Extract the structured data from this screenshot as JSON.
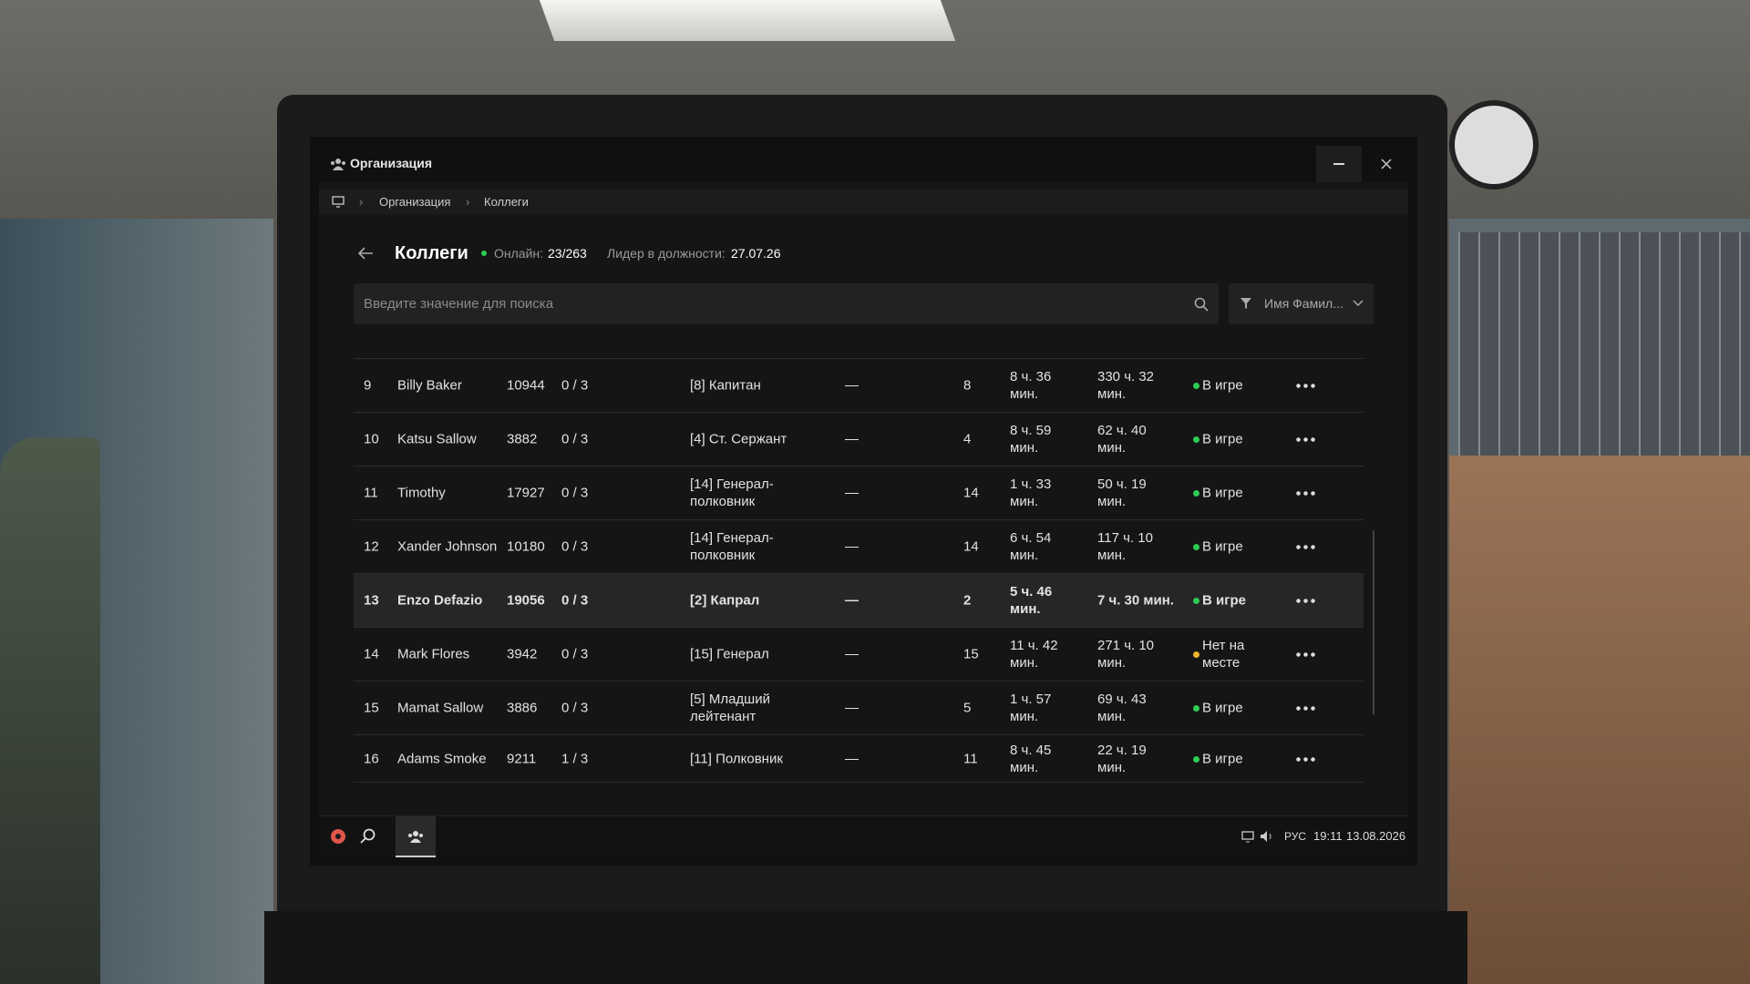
{
  "window": {
    "title": "Организация"
  },
  "breadcrumb": [
    "Организация",
    "Коллеги"
  ],
  "header": {
    "title": "Коллеги",
    "online_label": "Онлайн:",
    "online_value": "23/263",
    "leader_label": "Лидер в должности:",
    "leader_value": "27.07.26"
  },
  "search": {
    "placeholder": "Введите значение для поиска",
    "filter": "Имя Фамил..."
  },
  "rows": [
    {
      "num": "9",
      "name": "Billy Baker",
      "id": "10944",
      "warns": "0 / 3",
      "rank": "[8] Капитан",
      "note": "—",
      "level": "8",
      "today": "8 ч. 36 мин.",
      "total": "330 ч. 32 мин.",
      "status": "В игре",
      "status_color": "#2ecc55"
    },
    {
      "num": "10",
      "name": "Katsu Sallow",
      "id": "3882",
      "warns": "0 / 3",
      "rank": "[4] Ст. Сержант",
      "note": "—",
      "level": "4",
      "today": "8 ч. 59 мин.",
      "total": "62 ч. 40 мин.",
      "status": "В игре",
      "status_color": "#2ecc55"
    },
    {
      "num": "11",
      "name": "Timothy",
      "id": "17927",
      "warns": "0 / 3",
      "rank": "[14] Генерал-полковник",
      "note": "—",
      "level": "14",
      "today": "1 ч. 33 мин.",
      "total": "50 ч. 19 мин.",
      "status": "В игре",
      "status_color": "#2ecc55"
    },
    {
      "num": "12",
      "name": "Xander Johnson",
      "id": "10180",
      "warns": "0 / 3",
      "rank": "[14] Генерал-полковник",
      "note": "—",
      "level": "14",
      "today": "6 ч. 54 мин.",
      "total": "117 ч. 10 мин.",
      "status": "В игре",
      "status_color": "#2ecc55"
    },
    {
      "num": "13",
      "name": "Enzo Defazio",
      "id": "19056",
      "warns": "0 / 3",
      "rank": "[2] Капрал",
      "note": "—",
      "level": "2",
      "today": "5 ч. 46 мин.",
      "total": "7 ч. 30 мин.",
      "status": "В игре",
      "status_color": "#2ecc55",
      "selected": true
    },
    {
      "num": "14",
      "name": "Mark Flores",
      "id": "3942",
      "warns": "0 / 3",
      "rank": "[15] Генерал",
      "note": "—",
      "level": "15",
      "today": "11 ч. 42 мин.",
      "total": "271 ч. 10 мин.",
      "status": "Нет на месте",
      "status_color": "#f0b429"
    },
    {
      "num": "15",
      "name": "Mamat Sallow",
      "id": "3886",
      "warns": "0 / 3",
      "rank": "[5] Младший лейтенант",
      "note": "—",
      "level": "5",
      "today": "1 ч. 57 мин.",
      "total": "69 ч. 43 мин.",
      "status": "В игре",
      "status_color": "#2ecc55"
    },
    {
      "num": "16",
      "name": "Adams Smoke",
      "id": "9211",
      "warns": "1 / 3",
      "rank": "[11] Полковник",
      "note": "—",
      "level": "11",
      "today": "8 ч. 45 мин.",
      "total": "22 ч. 19 мин.",
      "status": "В игре",
      "status_color": "#2ecc55"
    }
  ],
  "taskbar": {
    "lang": "РУС",
    "time": "19:11",
    "date": "13.08.2026"
  }
}
